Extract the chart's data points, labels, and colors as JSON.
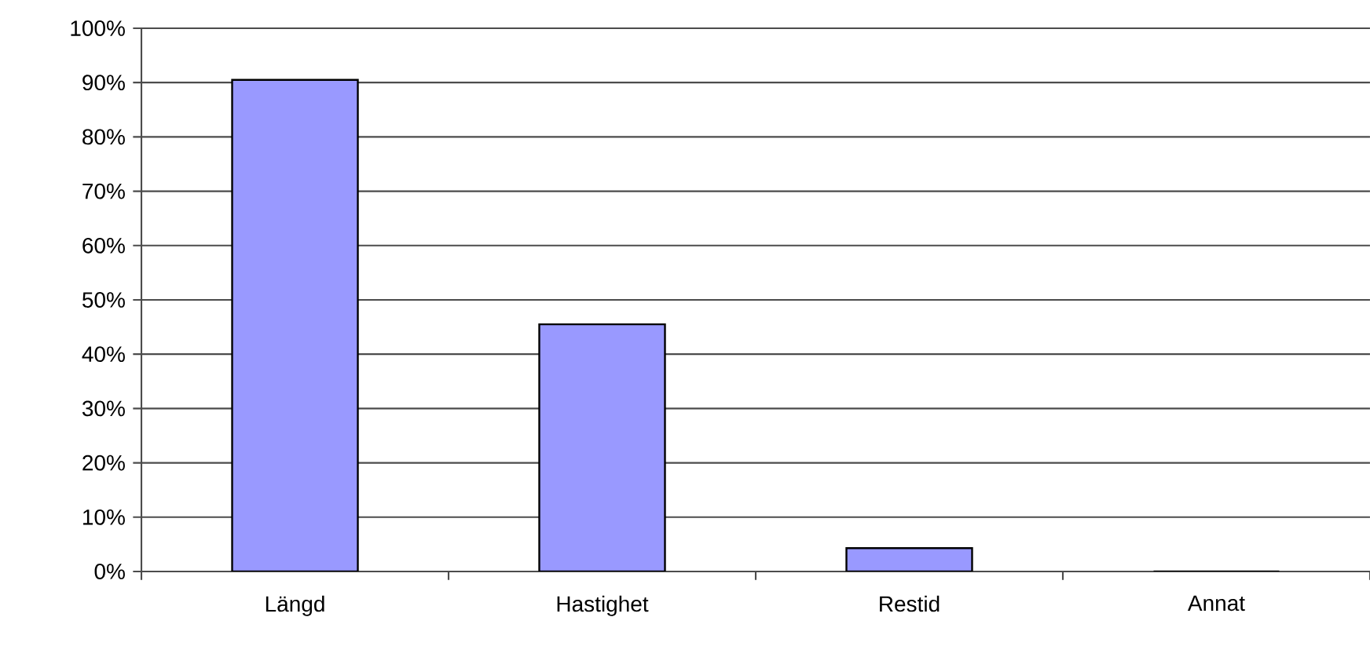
{
  "chart_data": {
    "type": "bar",
    "categories": [
      "Längd",
      "Hastighet",
      "Restid",
      "Annat"
    ],
    "values": [
      90.5,
      45.5,
      4.3,
      0
    ],
    "color": "#9999ff",
    "ylim": [
      0,
      100
    ],
    "yticks": [
      {
        "value": 0,
        "label": "0%"
      },
      {
        "value": 10,
        "label": "10%"
      },
      {
        "value": 20,
        "label": "20%"
      },
      {
        "value": 30,
        "label": "30%"
      },
      {
        "value": 40,
        "label": "40%"
      },
      {
        "value": 50,
        "label": "50%"
      },
      {
        "value": 60,
        "label": "60%"
      },
      {
        "value": 70,
        "label": "70%"
      },
      {
        "value": 80,
        "label": "80%"
      },
      {
        "value": 90,
        "label": "90%"
      },
      {
        "value": 100,
        "label": "100%"
      }
    ],
    "grid": "y"
  }
}
